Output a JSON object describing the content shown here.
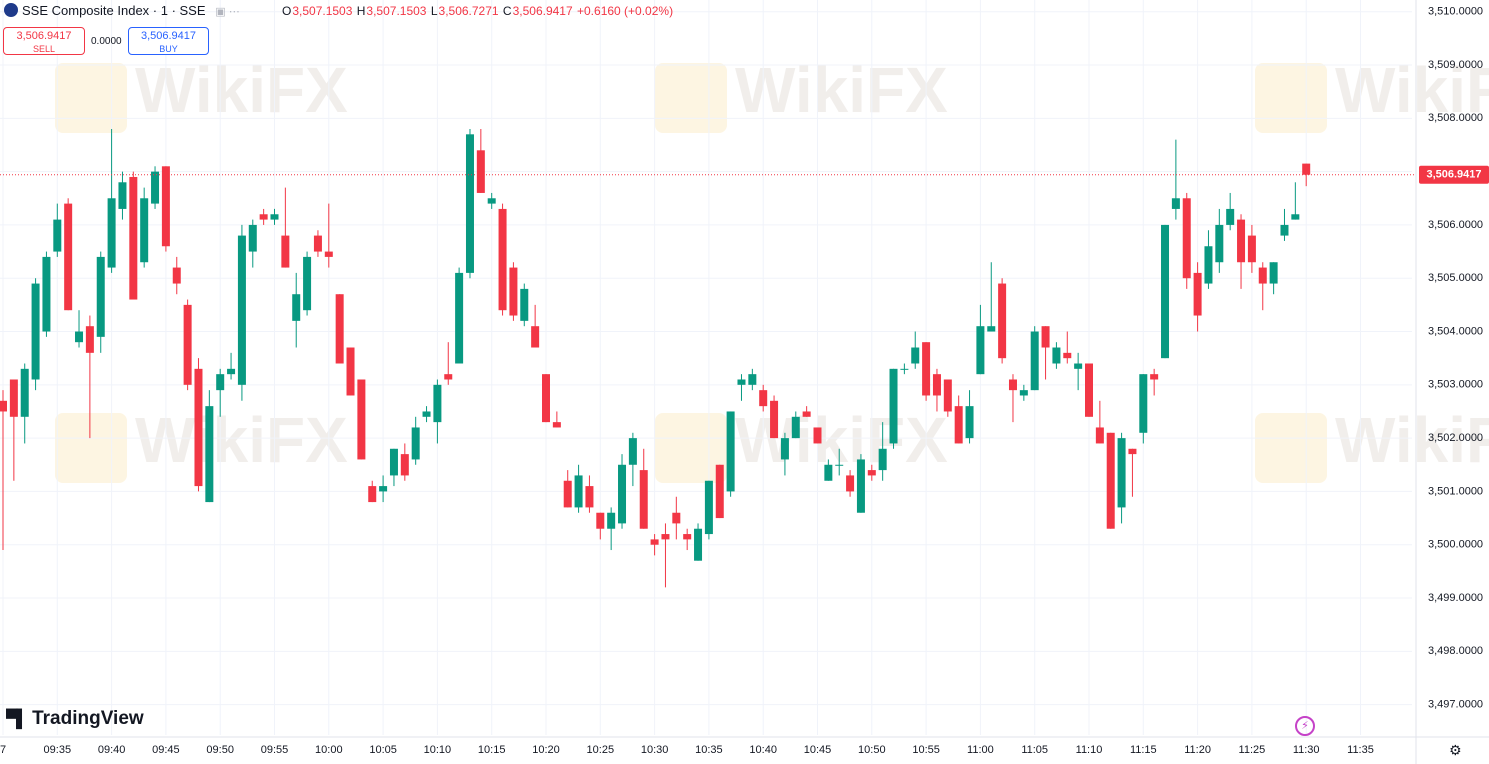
{
  "header": {
    "symbol": "SSE Composite Index · 1 · SSE",
    "open_key": "O",
    "open": "3,507.1503",
    "high_key": "H",
    "high": "3,507.1503",
    "low_key": "L",
    "low": "3,506.7271",
    "close_key": "C",
    "close": "3,506.9417",
    "change": "+0.6160 (+0.02%)",
    "sell_price": "3,506.9417",
    "sell": "SELL",
    "spread": "0.0000",
    "buy_price": "3,506.9417",
    "buy": "BUY"
  },
  "brand": "TradingView",
  "watermark": "WikiFX",
  "chart_data": {
    "type": "candlestick",
    "categories": [
      "7",
      null,
      null,
      null,
      null,
      "09:35",
      null,
      null,
      null,
      null,
      "09:40",
      null,
      null,
      null,
      null,
      "09:45",
      null,
      null,
      null,
      null,
      "09:50",
      null,
      null,
      null,
      null,
      "09:55",
      null,
      null,
      null,
      null,
      "10:00",
      null,
      null,
      null,
      null,
      "10:05",
      null,
      null,
      null,
      null,
      "10:10",
      null,
      null,
      null,
      null,
      "10:15",
      null,
      null,
      null,
      null,
      "10:20",
      null,
      null,
      null,
      null,
      "10:25",
      null,
      null,
      null,
      null,
      "10:30",
      null,
      null,
      null,
      null,
      "10:35",
      null,
      null,
      null,
      null,
      "10:40",
      null,
      null,
      null,
      null,
      "10:45",
      null,
      null,
      null,
      null,
      "10:50",
      null,
      null,
      null,
      null,
      "10:55",
      null,
      null,
      null,
      null,
      "11:00",
      null,
      null,
      null,
      null,
      "11:05",
      null,
      null,
      null,
      null,
      "11:10",
      null,
      null,
      null,
      null,
      "11:15",
      null,
      null,
      null,
      null,
      "11:20",
      null,
      null,
      null,
      null,
      "11:25",
      null,
      null,
      null,
      null,
      "11:30",
      null,
      null,
      null,
      null,
      "11:35"
    ],
    "open": [
      3502.7,
      3503.1,
      3502.4,
      3503.1,
      3504.0,
      3505.5,
      3506.4,
      3503.8,
      3504.1,
      3503.9,
      3505.2,
      3506.3,
      3506.9,
      3505.3,
      3506.4,
      3507.1,
      3505.2,
      3504.5,
      3503.3,
      3500.8,
      3502.9,
      3503.2,
      3503.0,
      3505.5,
      3506.2,
      3506.1,
      3505.8,
      3504.2,
      3504.4,
      3505.8,
      3505.5,
      3504.7,
      3503.7,
      3503.1,
      3501.1,
      3501.0,
      3501.3,
      3501.7,
      3501.6,
      3502.4,
      3502.3,
      3503.2,
      3503.4,
      3505.1,
      3507.4,
      3506.4,
      3506.3,
      3505.2,
      3504.2,
      3504.1,
      3503.2,
      3502.3,
      3501.2,
      3500.7,
      3501.1,
      3500.6,
      3500.3,
      3500.4,
      3501.5,
      3501.4,
      3500.1,
      3500.2,
      3500.6,
      3500.2,
      3499.7,
      3500.2,
      3501.5,
      3501.0,
      3503.0,
      3503.0,
      3502.9,
      3502.7,
      3501.6,
      3502.0,
      3502.5,
      3502.2,
      3501.2,
      3501.5,
      3501.3,
      3500.6,
      3501.4,
      3501.4,
      3501.9,
      3503.3,
      3503.4,
      3503.8,
      3503.2,
      3503.1,
      3502.6,
      3502.0,
      3503.2,
      3504.0,
      3504.9,
      3503.1,
      3502.8,
      3502.9,
      3504.1,
      3503.4,
      3503.6,
      3503.3,
      3503.4,
      3502.2,
      3502.1,
      3500.7,
      3501.8,
      3502.1,
      3503.2,
      3503.5,
      3506.3,
      3506.5,
      3505.1,
      3504.9,
      3505.3,
      3506.0,
      3506.1,
      3505.8,
      3505.2,
      3504.9,
      3505.8,
      3506.1,
      3507.1503,
      null,
      null,
      null,
      null,
      null
    ],
    "high": [
      3502.9,
      3503.1,
      3503.4,
      3505.0,
      3505.5,
      3506.4,
      3506.5,
      3504.4,
      3504.3,
      3505.5,
      3507.8,
      3507.0,
      3507.0,
      3506.7,
      3507.1,
      3507.1,
      3505.4,
      3504.6,
      3503.5,
      3502.9,
      3503.3,
      3503.6,
      3506.0,
      3506.1,
      3506.3,
      3506.3,
      3506.7,
      3505.1,
      3505.5,
      3505.9,
      3506.4,
      3504.7,
      3503.7,
      3503.1,
      3501.2,
      3501.3,
      3501.8,
      3501.9,
      3502.4,
      3502.6,
      3503.1,
      3503.8,
      3505.2,
      3507.8,
      3507.8,
      3506.6,
      3506.4,
      3505.3,
      3504.9,
      3504.5,
      3503.2,
      3502.5,
      3501.4,
      3501.5,
      3501.3,
      3500.6,
      3500.7,
      3501.7,
      3502.1,
      3501.8,
      3500.2,
      3500.4,
      3500.9,
      3500.3,
      3500.4,
      3501.2,
      3501.5,
      3502.5,
      3503.2,
      3503.3,
      3503.0,
      3502.8,
      3502.1,
      3502.5,
      3502.6,
      3502.2,
      3501.6,
      3501.8,
      3501.4,
      3501.7,
      3501.5,
      3502.3,
      3503.3,
      3503.4,
      3504.0,
      3503.8,
      3503.3,
      3503.1,
      3502.8,
      3502.9,
      3504.5,
      3505.3,
      3505.0,
      3503.2,
      3503.0,
      3504.1,
      3504.1,
      3503.8,
      3504.0,
      3503.6,
      3503.4,
      3502.7,
      3502.1,
      3502.1,
      3501.8,
      3503.2,
      3503.3,
      3506.0,
      3507.6,
      3506.6,
      3505.3,
      3505.9,
      3506.3,
      3506.6,
      3506.2,
      3506.0,
      3505.3,
      3505.3,
      3506.3,
      3506.8,
      3507.1503,
      null,
      null,
      null,
      null,
      null
    ],
    "low": [
      3499.9,
      3501.2,
      3501.9,
      3502.9,
      3503.9,
      3505.4,
      3504.4,
      3503.7,
      3502.0,
      3503.6,
      3505.1,
      3506.1,
      3504.6,
      3505.2,
      3506.3,
      3505.5,
      3504.7,
      3502.9,
      3501.0,
      3500.8,
      3502.4,
      3503.1,
      3502.7,
      3505.2,
      3506.0,
      3506.0,
      3505.2,
      3503.7,
      3504.3,
      3505.4,
      3505.2,
      3503.4,
      3502.8,
      3501.6,
      3500.8,
      3500.8,
      3501.1,
      3501.2,
      3501.5,
      3502.3,
      3501.9,
      3503.0,
      3503.4,
      3505.0,
      3506.6,
      3506.3,
      3504.3,
      3504.2,
      3504.1,
      3503.7,
      3502.3,
      3502.2,
      3500.7,
      3500.6,
      3500.6,
      3500.1,
      3499.9,
      3500.3,
      3501.1,
      3500.3,
      3499.8,
      3499.2,
      3500.1,
      3499.9,
      3499.7,
      3500.1,
      3500.5,
      3500.9,
      3502.7,
      3502.9,
      3502.5,
      3502.0,
      3501.3,
      3502.0,
      3502.4,
      3501.9,
      3501.2,
      3501.3,
      3500.9,
      3500.6,
      3501.2,
      3501.2,
      3501.8,
      3503.2,
      3503.3,
      3502.7,
      3502.5,
      3502.4,
      3501.9,
      3501.9,
      3503.2,
      3504.0,
      3503.4,
      3502.3,
      3502.7,
      3502.9,
      3503.1,
      3503.3,
      3503.4,
      3502.9,
      3502.4,
      3501.9,
      3500.3,
      3500.4,
      3500.9,
      3501.9,
      3502.8,
      3503.5,
      3506.1,
      3504.8,
      3504.0,
      3504.8,
      3505.1,
      3505.9,
      3504.8,
      3505.1,
      3504.4,
      3504.7,
      3505.7,
      3506.1,
      3506.7271,
      null,
      null,
      null,
      null,
      null
    ],
    "close": [
      3502.5,
      3502.4,
      3503.3,
      3504.9,
      3505.4,
      3506.1,
      3504.4,
      3504.0,
      3503.6,
      3505.4,
      3506.5,
      3506.8,
      3504.6,
      3506.5,
      3507.0,
      3505.6,
      3504.9,
      3503.0,
      3501.1,
      3502.6,
      3503.2,
      3503.3,
      3505.8,
      3506.0,
      3506.1,
      3506.2,
      3505.2,
      3504.7,
      3505.4,
      3505.5,
      3505.4,
      3503.4,
      3502.8,
      3501.6,
      3500.8,
      3501.1,
      3501.8,
      3501.3,
      3502.2,
      3502.5,
      3503.0,
      3503.1,
      3505.1,
      3507.7,
      3506.6,
      3506.5,
      3504.4,
      3504.3,
      3504.8,
      3503.7,
      3502.3,
      3502.2,
      3500.7,
      3501.3,
      3500.7,
      3500.3,
      3500.6,
      3501.5,
      3502.0,
      3500.3,
      3500.0,
      3500.1,
      3500.4,
      3500.1,
      3500.3,
      3501.2,
      3500.5,
      3502.5,
      3503.1,
      3503.2,
      3502.6,
      3502.0,
      3502.0,
      3502.4,
      3502.4,
      3501.9,
      3501.5,
      3501.5,
      3501.0,
      3501.6,
      3501.3,
      3501.8,
      3503.3,
      3503.3,
      3503.7,
      3502.8,
      3502.8,
      3502.5,
      3501.9,
      3502.6,
      3504.1,
      3504.1,
      3503.5,
      3502.9,
      3502.9,
      3504.0,
      3503.7,
      3503.7,
      3503.5,
      3503.4,
      3502.4,
      3501.9,
      3500.3,
      3502.0,
      3501.7,
      3503.2,
      3503.1,
      3506.0,
      3506.5,
      3505.0,
      3504.3,
      3505.6,
      3506.0,
      3506.3,
      3505.3,
      3505.3,
      3504.9,
      3505.3,
      3506.0,
      3506.2,
      3506.9417,
      null,
      null,
      null,
      null,
      null
    ],
    "up_color": "#089981",
    "down_color": "#f23645",
    "ylim": [
      3496.43,
      3510.22
    ],
    "yticks": [
      {
        "value": 3497,
        "label": "3,497.0000"
      },
      {
        "value": 3498,
        "label": "3,498.0000"
      },
      {
        "value": 3499,
        "label": "3,499.0000"
      },
      {
        "value": 3500,
        "label": "3,500.0000"
      },
      {
        "value": 3501,
        "label": "3,501.0000"
      },
      {
        "value": 3502,
        "label": "3,502.0000"
      },
      {
        "value": 3503,
        "label": "3,503.0000"
      },
      {
        "value": 3504,
        "label": "3,504.0000"
      },
      {
        "value": 3505,
        "label": "3,505.0000"
      },
      {
        "value": 3506,
        "label": "3,506.0000"
      },
      {
        "value": 3507,
        "label": "3,507.0000"
      },
      {
        "value": 3508,
        "label": "3,508.0000"
      },
      {
        "value": 3509,
        "label": "3,509.0000"
      },
      {
        "value": 3510,
        "label": "3,510.0000"
      }
    ],
    "last_price": {
      "value": 3506.9417,
      "label": "3,506.9417"
    },
    "grid": true
  }
}
